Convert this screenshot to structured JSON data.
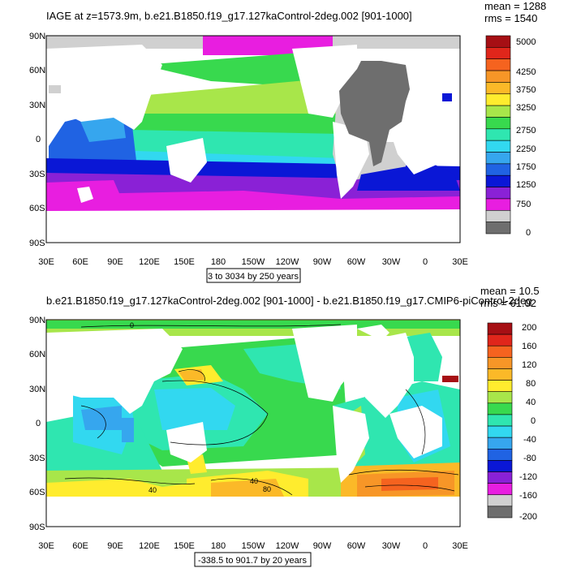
{
  "panel1": {
    "title": "IAGE at z=1573.9m, b.e21.B1850.f19_g17.127kaControl-2deg.002 [901-1000]",
    "mean": "mean = 1288",
    "rms": "rms = 1540",
    "subtitle": "3 to 3034 by 250 years",
    "lat_ticks": [
      "90N",
      "60N",
      "30N",
      "0",
      "30S",
      "60S",
      "90S"
    ],
    "lon_ticks": [
      "30E",
      "60E",
      "90E",
      "120E",
      "150E",
      "180",
      "150W",
      "120W",
      "90W",
      "60W",
      "30W",
      "0",
      "30E"
    ],
    "colorbar_labels": [
      "5000",
      "4250",
      "3750",
      "3250",
      "2750",
      "2250",
      "1750",
      "1250",
      "750",
      "0"
    ],
    "colorbar_colors": [
      "#a60f14",
      "#e0261b",
      "#f5631f",
      "#f79627",
      "#fbb928",
      "#ffec2e",
      "#a8e64a",
      "#38d94e",
      "#2fe6b0",
      "#32d8f0",
      "#36a6ee",
      "#2063e3",
      "#0a17d6",
      "#8a21d6",
      "#e81ee0",
      "#d0d0d0",
      "#6e6e6e"
    ]
  },
  "panel2": {
    "title": "b.e21.B1850.f19_g17.127kaControl-2deg.002 [901-1000] - b.e21.B1850.f19_g17.CMIP6-piControl-2deg",
    "mean": "mean = 10.5",
    "rms": "rms = 61.02",
    "subtitle": "-338.5 to 901.7 by 20 years",
    "lat_ticks": [
      "90N",
      "60N",
      "30N",
      "0",
      "30S",
      "60S",
      "90S"
    ],
    "lon_ticks": [
      "30E",
      "60E",
      "90E",
      "120E",
      "150E",
      "180",
      "150W",
      "120W",
      "90W",
      "60W",
      "30W",
      "0",
      "30E"
    ],
    "colorbar_labels": [
      "200",
      "160",
      "120",
      "80",
      "40",
      "0",
      "-40",
      "-80",
      "-120",
      "-160",
      "-200"
    ],
    "colorbar_colors": [
      "#a60f14",
      "#e0261b",
      "#f5631f",
      "#f79627",
      "#fbb928",
      "#ffec2e",
      "#a8e64a",
      "#38d94e",
      "#2fe6b0",
      "#32d8f0",
      "#36a6ee",
      "#2063e3",
      "#0a17d6",
      "#8a21d6",
      "#e81ee0",
      "#d0d0d0",
      "#6e6e6e"
    ],
    "contour_labels": [
      "0",
      "40",
      "40",
      "80"
    ]
  }
}
